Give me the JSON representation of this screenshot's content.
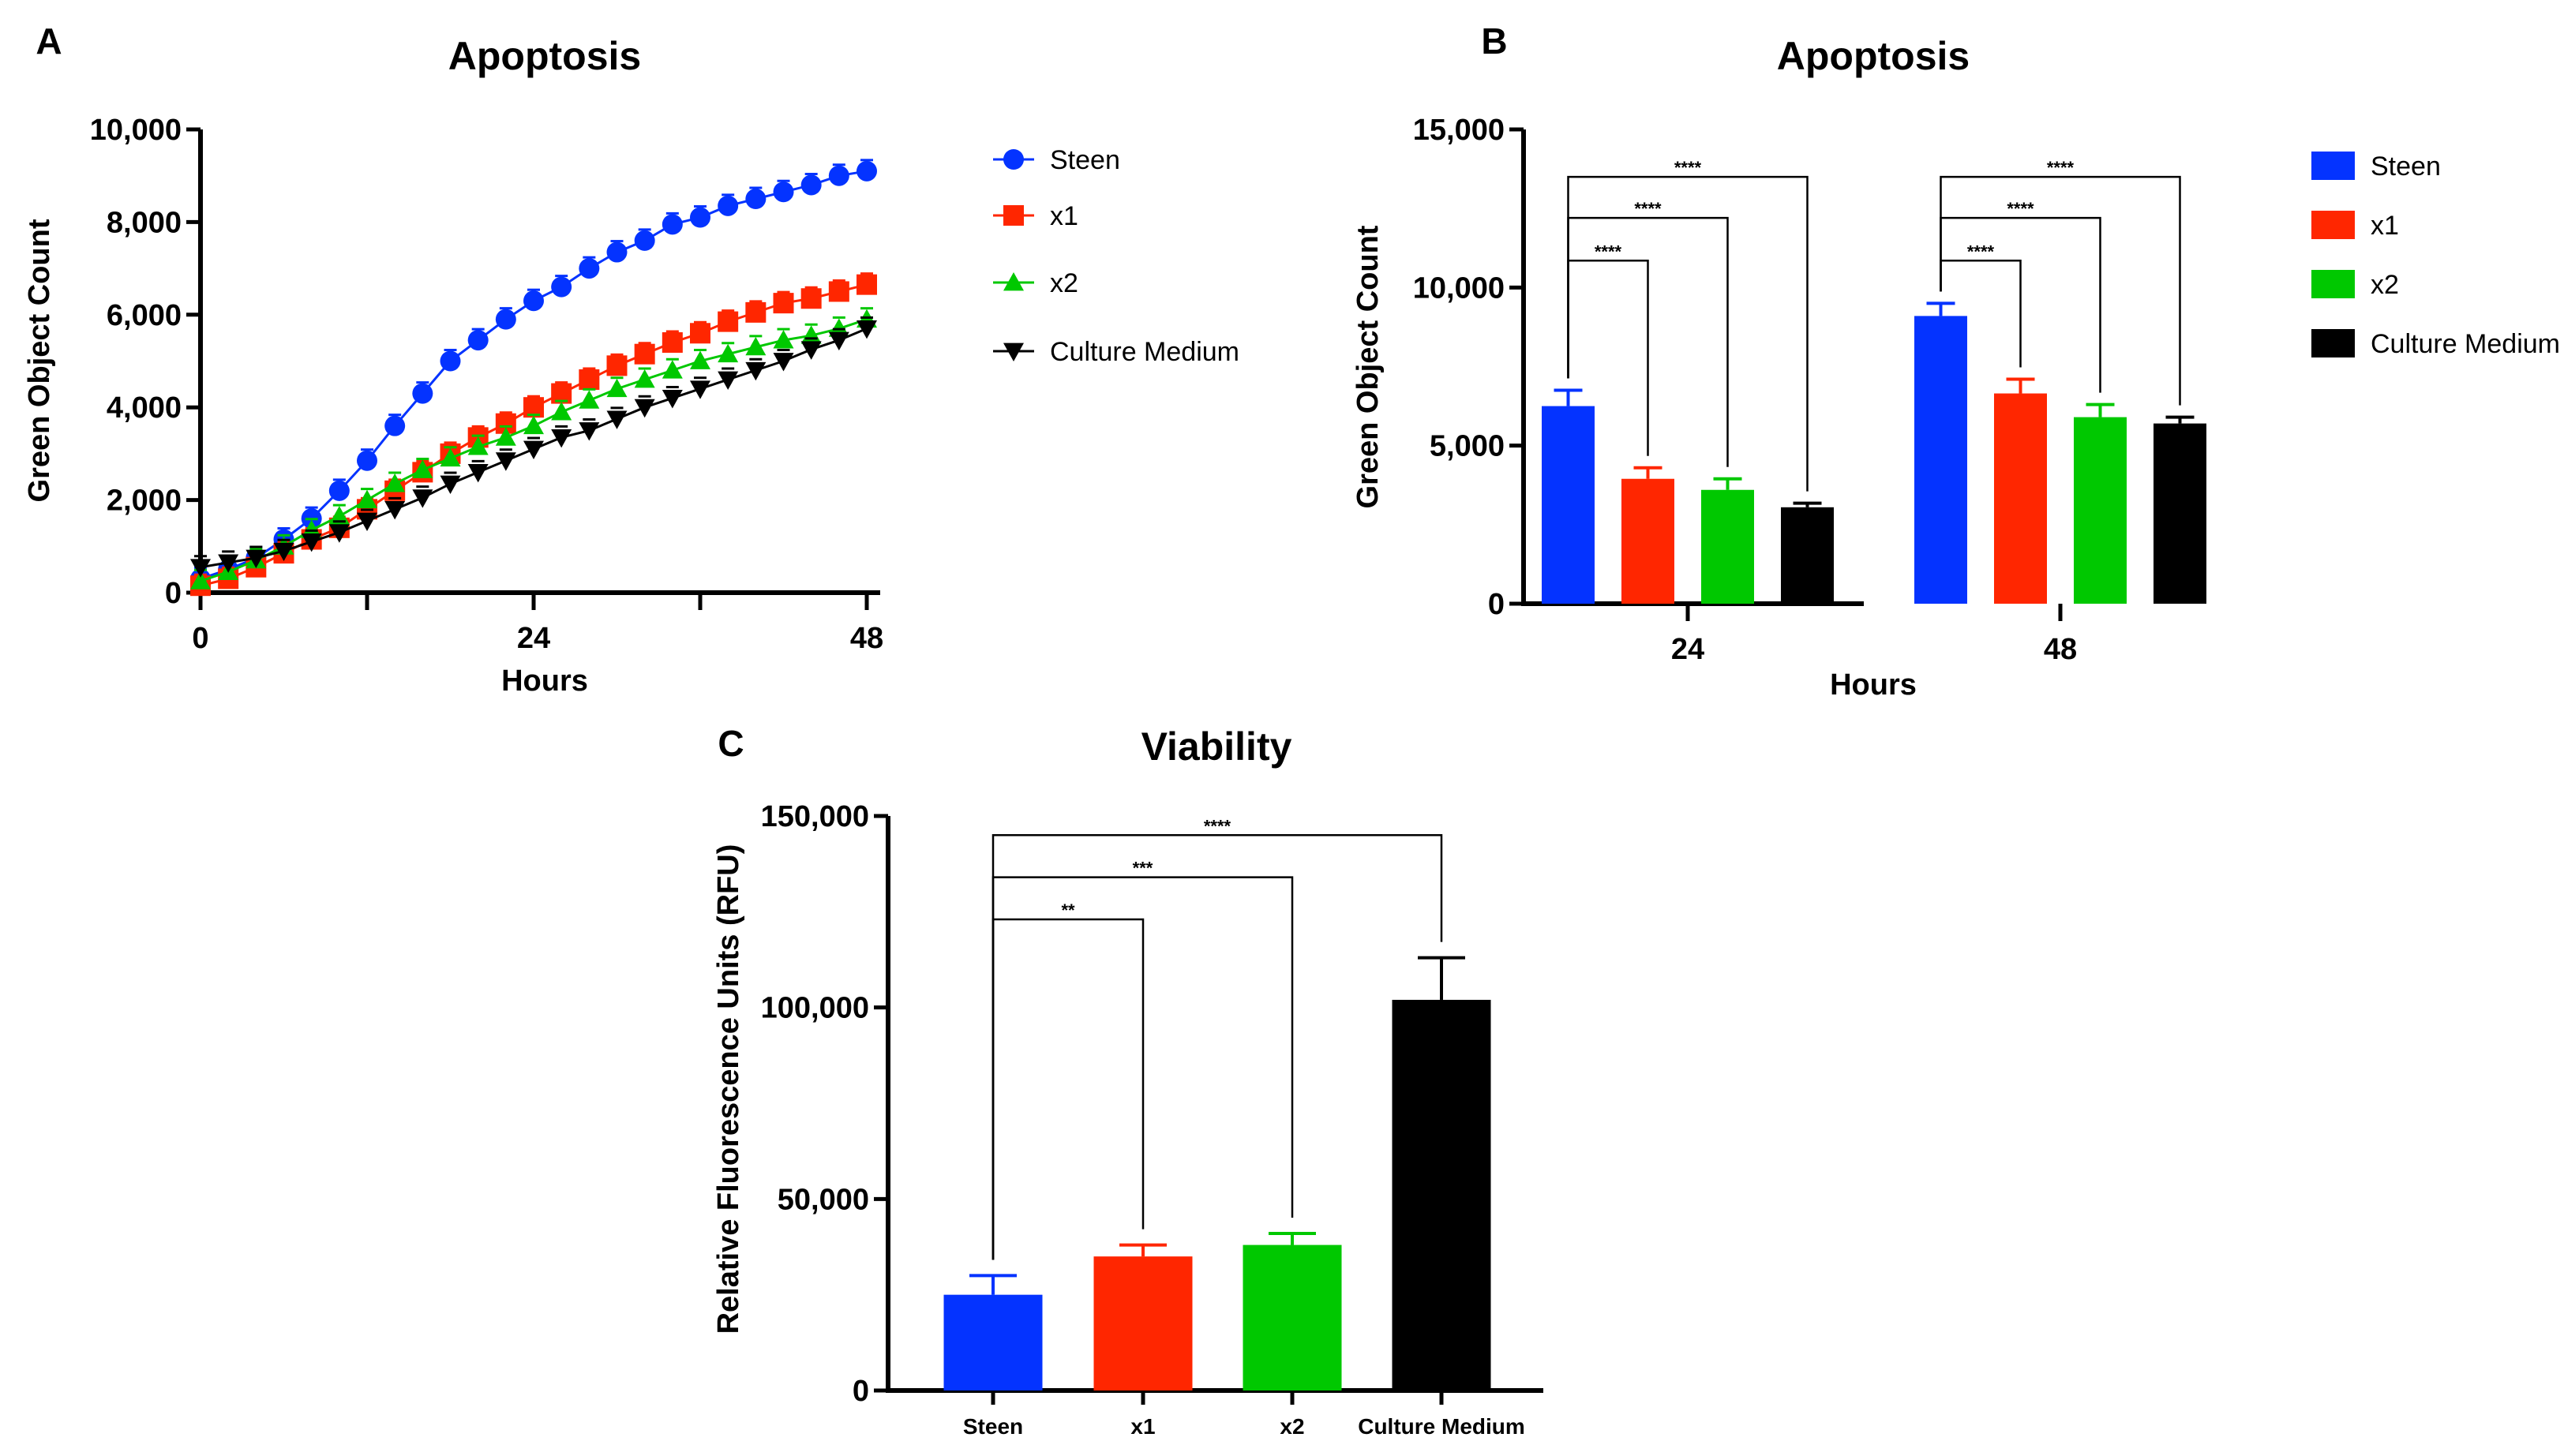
{
  "colors": {
    "Steen": "#0433ff",
    "x1": "#ff2600",
    "x2": "#00c800",
    "Culture Medium": "#000000"
  },
  "chart_data": [
    {
      "panel": "A",
      "type": "line",
      "title": "Apoptosis",
      "xlabel": "Hours",
      "ylabel": "Green Object Count",
      "xlim": [
        0,
        48
      ],
      "ylim": [
        0,
        10000
      ],
      "xticks": [
        0,
        24,
        48
      ],
      "xtick_labels": [
        "0",
        "24",
        "48"
      ],
      "yticks": [
        0,
        2000,
        4000,
        6000,
        8000,
        10000
      ],
      "ytick_labels": [
        "0",
        "2,000",
        "4,000",
        "6,000",
        "8,000",
        "10,000"
      ],
      "legend": "right",
      "markers": {
        "Steen": "circle",
        "x1": "square",
        "x2": "triangle-up",
        "Culture Medium": "triangle-down"
      },
      "x": [
        0,
        2,
        4,
        6,
        8,
        10,
        12,
        14,
        16,
        18,
        20,
        22,
        24,
        26,
        28,
        30,
        32,
        34,
        36,
        38,
        40,
        42,
        44,
        46,
        48
      ],
      "series": [
        {
          "name": "Steen",
          "values": [
            300,
            500,
            750,
            1150,
            1600,
            2200,
            2850,
            3600,
            4300,
            5000,
            5450,
            5900,
            6300,
            6600,
            7000,
            7350,
            7600,
            7950,
            8100,
            8350,
            8500,
            8650,
            8800,
            9000,
            9100
          ]
        },
        {
          "name": "x1",
          "values": [
            150,
            300,
            550,
            850,
            1150,
            1400,
            1800,
            2200,
            2600,
            3000,
            3350,
            3650,
            4000,
            4300,
            4600,
            4900,
            5150,
            5400,
            5600,
            5850,
            6050,
            6250,
            6350,
            6500,
            6650
          ]
        },
        {
          "name": "x2",
          "values": [
            250,
            450,
            700,
            1000,
            1350,
            1650,
            2000,
            2350,
            2650,
            2900,
            3150,
            3350,
            3600,
            3900,
            4150,
            4400,
            4600,
            4800,
            5000,
            5150,
            5300,
            5450,
            5550,
            5700,
            5900
          ]
        },
        {
          "name": "Culture Medium",
          "values": [
            550,
            650,
            750,
            900,
            1100,
            1300,
            1550,
            1800,
            2050,
            2350,
            2600,
            2850,
            3100,
            3350,
            3500,
            3750,
            4000,
            4200,
            4400,
            4600,
            4800,
            5000,
            5250,
            5450,
            5700
          ]
        }
      ]
    },
    {
      "panel": "B",
      "type": "bar",
      "title": "Apoptosis",
      "xlabel": "Hours",
      "ylabel": "Green Object Count",
      "ylim": [
        0,
        15000
      ],
      "categories": [
        "24",
        "48"
      ],
      "yticks": [
        0,
        5000,
        10000,
        15000
      ],
      "ytick_labels": [
        "0",
        "5,000",
        "10,000",
        "15,000"
      ],
      "legend": "right",
      "series": [
        {
          "name": "Steen",
          "values": [
            6250,
            9100
          ],
          "errors": [
            500,
            400
          ]
        },
        {
          "name": "x1",
          "values": [
            3950,
            6650
          ],
          "errors": [
            350,
            450
          ]
        },
        {
          "name": "x2",
          "values": [
            3600,
            5900
          ],
          "errors": [
            350,
            400
          ]
        },
        {
          "name": "Culture Medium",
          "values": [
            3050,
            5700
          ],
          "errors": [
            130,
            200
          ]
        }
      ],
      "significance": [
        {
          "category": "24",
          "from": "Steen",
          "to": "x1",
          "label": "****",
          "level": 10850
        },
        {
          "category": "24",
          "from": "Steen",
          "to": "x2",
          "label": "****",
          "level": 12200
        },
        {
          "category": "24",
          "from": "Steen",
          "to": "Culture Medium",
          "label": "****",
          "level": 13500
        },
        {
          "category": "48",
          "from": "Steen",
          "to": "x1",
          "label": "****",
          "level": 10850
        },
        {
          "category": "48",
          "from": "Steen",
          "to": "x2",
          "label": "****",
          "level": 12200
        },
        {
          "category": "48",
          "from": "Steen",
          "to": "Culture Medium",
          "label": "****",
          "level": 13500
        }
      ]
    },
    {
      "panel": "C",
      "type": "bar",
      "title": "Viability",
      "xlabel": "",
      "ylabel": "Relative Fluorescence Units (RFU)",
      "ylim": [
        0,
        150000
      ],
      "categories": [
        "Steen",
        "x1",
        "x2",
        "Culture Medium"
      ],
      "yticks": [
        0,
        50000,
        100000,
        150000
      ],
      "ytick_labels": [
        "0",
        "50,000",
        "100,000",
        "150,000"
      ],
      "values": [
        25000,
        35000,
        38000,
        102000
      ],
      "errors": [
        5000,
        3000,
        3000,
        11000
      ],
      "significance": [
        {
          "from": "Steen",
          "to": "x1",
          "label": "**",
          "level": 123000
        },
        {
          "from": "Steen",
          "to": "x2",
          "label": "***",
          "level": 134000
        },
        {
          "from": "Steen",
          "to": "Culture Medium",
          "label": "****",
          "level": 145000
        }
      ]
    }
  ]
}
